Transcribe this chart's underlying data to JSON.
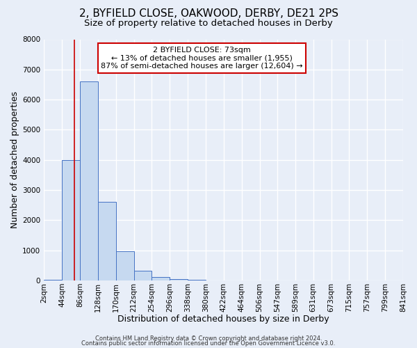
{
  "title": "2, BYFIELD CLOSE, OAKWOOD, DERBY, DE21 2PS",
  "subtitle": "Size of property relative to detached houses in Derby",
  "xlabel": "Distribution of detached houses by size in Derby",
  "ylabel": "Number of detached properties",
  "bin_edges": [
    2,
    44,
    86,
    128,
    170,
    212,
    254,
    296,
    338,
    380,
    422,
    464,
    506,
    547,
    589,
    631,
    673,
    715,
    757,
    799,
    841
  ],
  "bin_labels": [
    "2sqm",
    "44sqm",
    "86sqm",
    "128sqm",
    "170sqm",
    "212sqm",
    "254sqm",
    "296sqm",
    "338sqm",
    "380sqm",
    "422sqm",
    "464sqm",
    "506sqm",
    "547sqm",
    "589sqm",
    "631sqm",
    "673sqm",
    "715sqm",
    "757sqm",
    "799sqm",
    "841sqm"
  ],
  "counts": [
    30,
    4000,
    6600,
    2600,
    970,
    330,
    115,
    50,
    30,
    0,
    0,
    0,
    0,
    0,
    0,
    0,
    0,
    0,
    0,
    0
  ],
  "bar_color": "#c6d9f0",
  "bar_edge_color": "#4472c4",
  "vline_x": 73,
  "vline_color": "#cc0000",
  "ylim": [
    0,
    8000
  ],
  "annotation_title": "2 BYFIELD CLOSE: 73sqm",
  "annotation_line1": "← 13% of detached houses are smaller (1,955)",
  "annotation_line2": "87% of semi-detached houses are larger (12,604) →",
  "annotation_box_color": "#ffffff",
  "annotation_box_edge": "#cc0000",
  "footer1": "Contains HM Land Registry data © Crown copyright and database right 2024.",
  "footer2": "Contains public sector information licensed under the Open Government Licence v3.0.",
  "background_color": "#e8eef8",
  "plot_bg_color": "#e8eef8",
  "grid_color": "#ffffff",
  "title_fontsize": 11,
  "subtitle_fontsize": 9.5,
  "axis_label_fontsize": 9,
  "tick_fontsize": 7.5
}
